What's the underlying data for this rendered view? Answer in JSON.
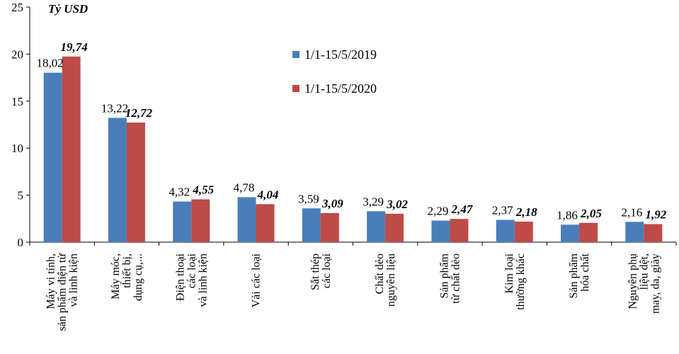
{
  "chart_data": {
    "type": "bar",
    "ylabel": "Tỷ USD",
    "ylim": [
      0,
      25
    ],
    "yticks": [
      0,
      5,
      10,
      15,
      20,
      25
    ],
    "legend_position": "top-right",
    "categories": [
      [
        "Máy vi tính,",
        "sản phẩm điện tử",
        "và linh kiện"
      ],
      [
        "Máy móc,",
        "thiết bị,",
        "dụng cụ,..."
      ],
      [
        "Điện thoại",
        "các loại",
        "và linh kiện"
      ],
      [
        "Vải các loại"
      ],
      [
        "Sắt thép",
        "các loại"
      ],
      [
        "Chất dẻo",
        "nguyên liệu"
      ],
      [
        "Sản phẩm",
        "từ chất dẻo"
      ],
      [
        "Kim loại",
        "thường khác"
      ],
      [
        "Sản phẩm",
        "hóa chất"
      ],
      [
        "Nguyên phụ",
        "liệu dệt,",
        "may, da, giày"
      ]
    ],
    "series": [
      {
        "name": "1/1-15/5/2019",
        "color": "#4a7ebb",
        "values": [
          18.02,
          13.22,
          4.32,
          4.78,
          3.59,
          3.29,
          2.29,
          2.37,
          1.86,
          2.16
        ],
        "labels": [
          "18,02",
          "13,22",
          "4,32",
          "4,78",
          "3,59",
          "3,29",
          "2,29",
          "2,37",
          "1,86",
          "2,16"
        ]
      },
      {
        "name": "1/1-15/5/2020",
        "color": "#be4b48",
        "values": [
          19.74,
          12.72,
          4.55,
          4.04,
          3.09,
          3.02,
          2.47,
          2.18,
          2.05,
          1.92
        ],
        "labels": [
          "19,74",
          "12,72",
          "4,55",
          "4,04",
          "3,09",
          "3,02",
          "2,47",
          "2,18",
          "2,05",
          "1,92"
        ]
      }
    ]
  }
}
